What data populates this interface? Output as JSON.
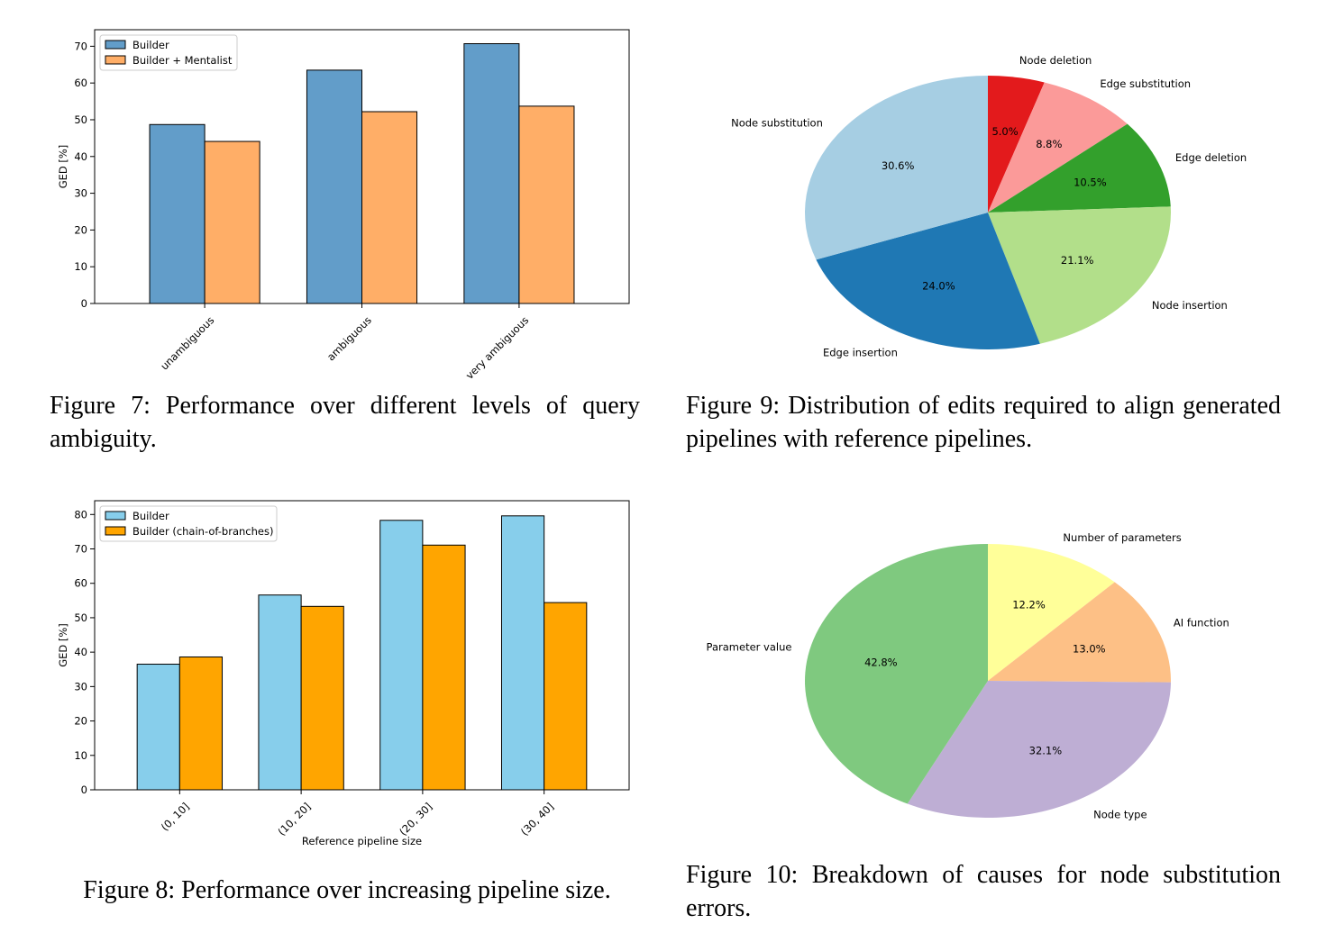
{
  "figures": {
    "fig7": {
      "caption": "Figure 7: Performance over different levels of query ambiguity.",
      "chart_data": {
        "type": "bar",
        "title": "",
        "xlabel": "",
        "ylabel": "GED [%]",
        "categories": [
          "unambiguous",
          "ambiguous",
          "very ambiguous"
        ],
        "series": [
          {
            "name": "Builder",
            "values": [
              48.7,
              63.5,
              70.7
            ],
            "color": "#4c8fc2"
          },
          {
            "name": "Builder + Mentalist",
            "values": [
              44.1,
              52.2,
              53.7
            ],
            "color": "#ffa352"
          }
        ],
        "ylim": [
          0,
          74.5
        ],
        "yticks": [
          0,
          10,
          20,
          30,
          40,
          50,
          60,
          70
        ],
        "legend": "top-left",
        "grid": false
      }
    },
    "fig8": {
      "caption": "Figure 8: Performance over increasing pipeline size.",
      "chart_data": {
        "type": "bar",
        "title": "",
        "xlabel": "Reference pipeline size",
        "ylabel": "GED [%]",
        "categories": [
          "(0, 10]",
          "(10, 20]",
          "(20, 30]",
          "(30, 40]"
        ],
        "series": [
          {
            "name": "Builder",
            "values": [
              36.5,
              56.6,
              78.3,
              79.6
            ],
            "color": "#87ceeb"
          },
          {
            "name": "Builder (chain-of-branches)",
            "values": [
              38.6,
              53.3,
              71.1,
              54.4
            ],
            "color": "#ffa500"
          }
        ],
        "ylim": [
          0,
          84
        ],
        "yticks": [
          0,
          10,
          20,
          30,
          40,
          50,
          60,
          70,
          80
        ],
        "legend": "top-left",
        "grid": false
      }
    },
    "fig9": {
      "caption": "Figure 9: Distribution of edits required to align generated pipelines with reference pipelines.",
      "chart_data": {
        "type": "pie",
        "title": "",
        "slices": [
          {
            "label": "Node deletion",
            "value": 5.0,
            "pct": "5.0%",
            "color": "#e31a1c"
          },
          {
            "label": "Edge substitution",
            "value": 8.8,
            "pct": "8.8%",
            "color": "#fb9a99"
          },
          {
            "label": "Edge deletion",
            "value": 10.5,
            "pct": "10.5%",
            "color": "#33a02c"
          },
          {
            "label": "Node insertion",
            "value": 21.1,
            "pct": "21.1%",
            "color": "#b2df8a"
          },
          {
            "label": "Edge insertion",
            "value": 24.0,
            "pct": "24.0%",
            "color": "#1f78b4"
          },
          {
            "label": "Node substitution",
            "value": 30.6,
            "pct": "30.6%",
            "color": "#a6cee3"
          }
        ]
      }
    },
    "fig10": {
      "caption": "Figure 10: Breakdown of causes for node substitution errors.",
      "chart_data": {
        "type": "pie",
        "title": "",
        "slices": [
          {
            "label": "Number of parameters",
            "value": 12.2,
            "pct": "12.2%",
            "color": "#ffff99"
          },
          {
            "label": "AI function",
            "value": 13.0,
            "pct": "13.0%",
            "color": "#fdc086"
          },
          {
            "label": "Node type",
            "value": 32.1,
            "pct": "32.1%",
            "color": "#beaed4"
          },
          {
            "label": "Parameter value",
            "value": 42.8,
            "pct": "42.8%",
            "color": "#7fc97f"
          }
        ]
      }
    }
  }
}
